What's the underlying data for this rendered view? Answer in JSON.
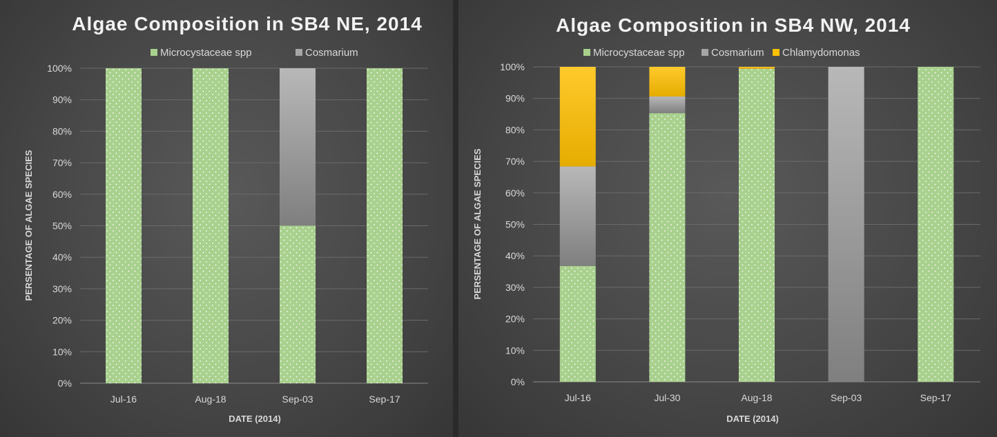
{
  "chart_data": [
    {
      "type": "bar",
      "stacked": true,
      "percent": true,
      "title": "Algae Composition in SB4 NE, 2014",
      "xlabel": "DATE (2014)",
      "ylabel": "PERSENTAGE OF ALGAE SPECIES",
      "ylim": [
        0,
        100
      ],
      "yticks": [
        "0%",
        "10%",
        "20%",
        "30%",
        "40%",
        "50%",
        "60%",
        "70%",
        "80%",
        "90%",
        "100%"
      ],
      "grid": true,
      "legend": "top-center",
      "categories": [
        "Jul-16",
        "Aug-18",
        "Sep-03",
        "Sep-17"
      ],
      "series": [
        {
          "name": "Microcystaceae spp",
          "color": "#a9d18e",
          "values": [
            100,
            100,
            50,
            100
          ]
        },
        {
          "name": "Cosmarium",
          "color": "#a6a6a6",
          "values": [
            0,
            0,
            50,
            0
          ]
        }
      ]
    },
    {
      "type": "bar",
      "stacked": true,
      "percent": true,
      "title": "Algae Composition in SB4 NW, 2014",
      "xlabel": "DATE (2014)",
      "ylabel": "PERSENTAGE OF ALGAE SPECIES",
      "ylim": [
        0,
        100
      ],
      "yticks": [
        "0%",
        "10%",
        "20%",
        "30%",
        "40%",
        "50%",
        "60%",
        "70%",
        "80%",
        "90%",
        "100%"
      ],
      "grid": true,
      "legend": "top-center",
      "categories": [
        "Jul-16",
        "Jul-30",
        "Aug-18",
        "Sep-03",
        "Sep-17"
      ],
      "series": [
        {
          "name": "Microcystaceae spp",
          "color": "#a9d18e",
          "values": [
            36.8,
            85.3,
            99.4,
            0,
            100
          ]
        },
        {
          "name": "Cosmarium",
          "color": "#a6a6a6",
          "values": [
            31.6,
            5.3,
            0,
            100,
            0
          ]
        },
        {
          "name": "Chlamydomonas",
          "color": "#ffc000",
          "values": [
            31.6,
            9.4,
            0.6,
            0,
            0
          ]
        }
      ]
    }
  ]
}
